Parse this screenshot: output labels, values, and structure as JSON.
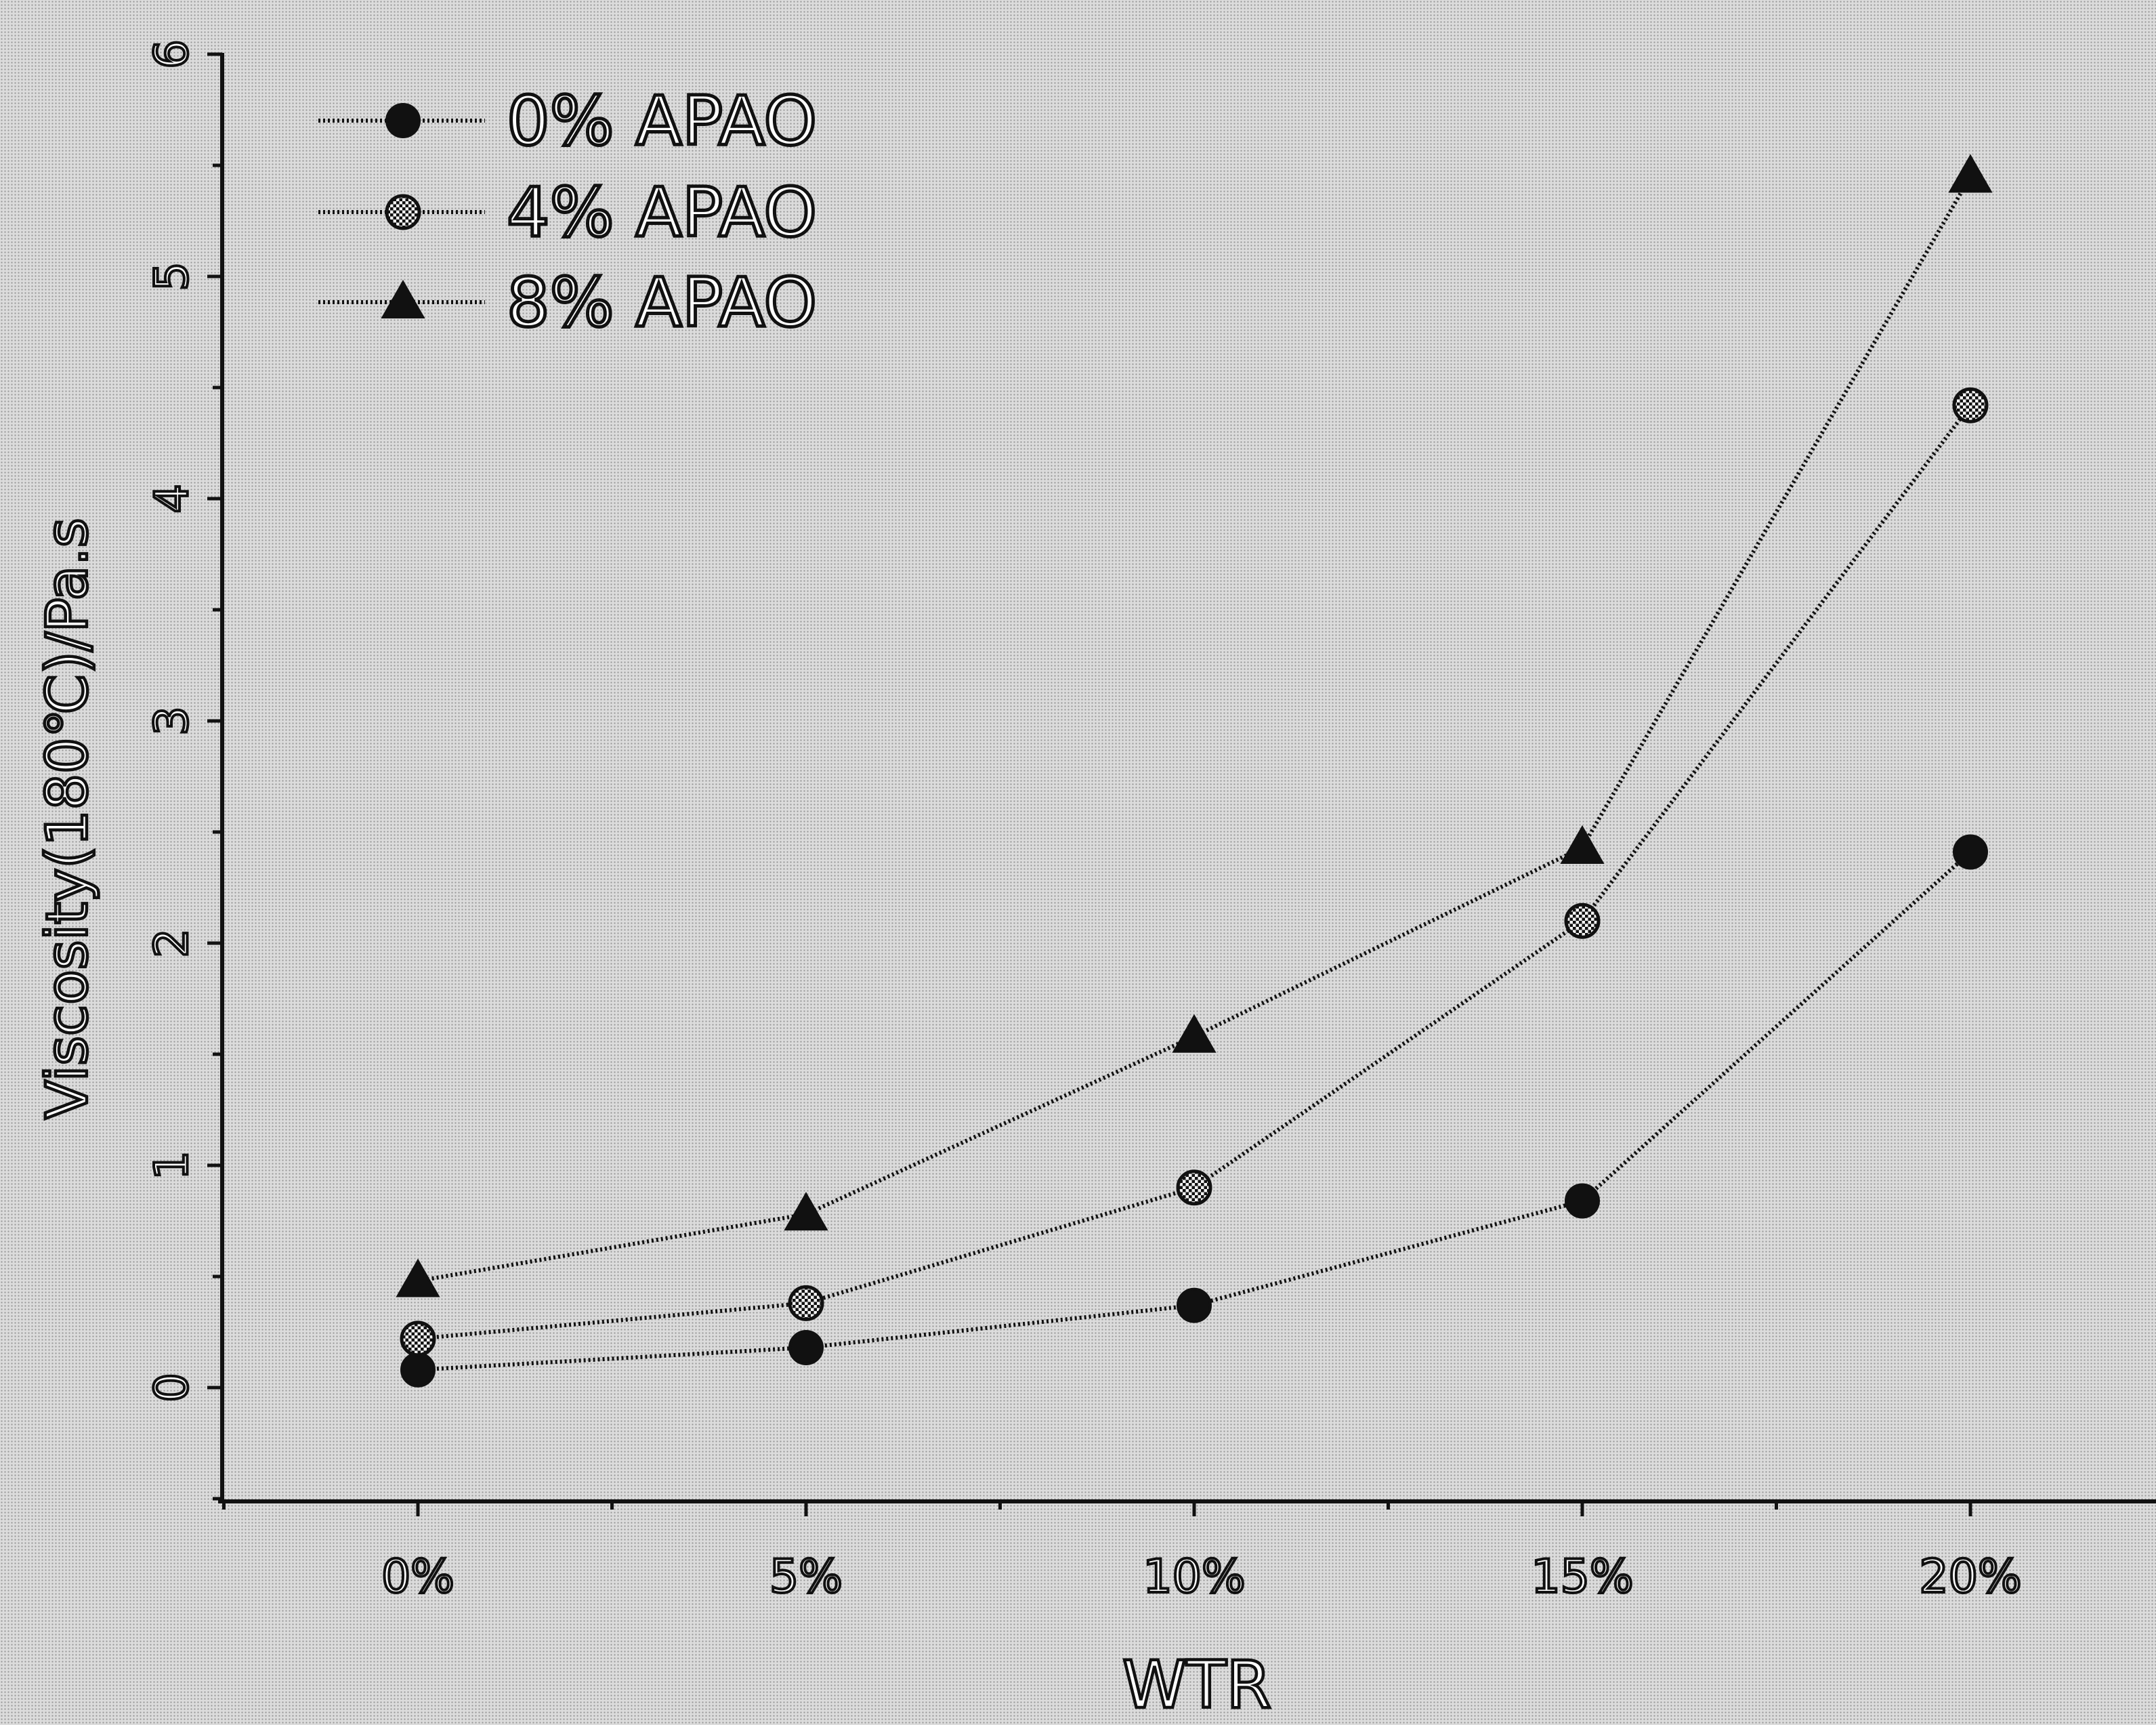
{
  "chart_data": {
    "type": "line",
    "categories": [
      "0%",
      "5%",
      "10%",
      "15%",
      "20%"
    ],
    "series": [
      {
        "name": "0% APAO",
        "marker": "circle",
        "values": [
          0.08,
          0.18,
          0.37,
          0.84,
          2.41
        ]
      },
      {
        "name": "4% APAO",
        "marker": "hatched-circle",
        "values": [
          0.22,
          0.38,
          0.9,
          2.1,
          4.42
        ]
      },
      {
        "name": "8% APAO",
        "marker": "triangle",
        "values": [
          0.48,
          0.78,
          1.58,
          2.43,
          5.45
        ]
      }
    ],
    "xlabel": "WTR",
    "ylabel": "Viscosity(180℃)/Pa.s",
    "ylim": [
      -0.5,
      6
    ],
    "yticks": [
      "0",
      "1",
      "2",
      "3",
      "4",
      "5",
      "6"
    ],
    "grid": false,
    "legend_position": "top-left",
    "colors": {
      "ink": "#111111",
      "background": "#dcdcdc"
    }
  }
}
